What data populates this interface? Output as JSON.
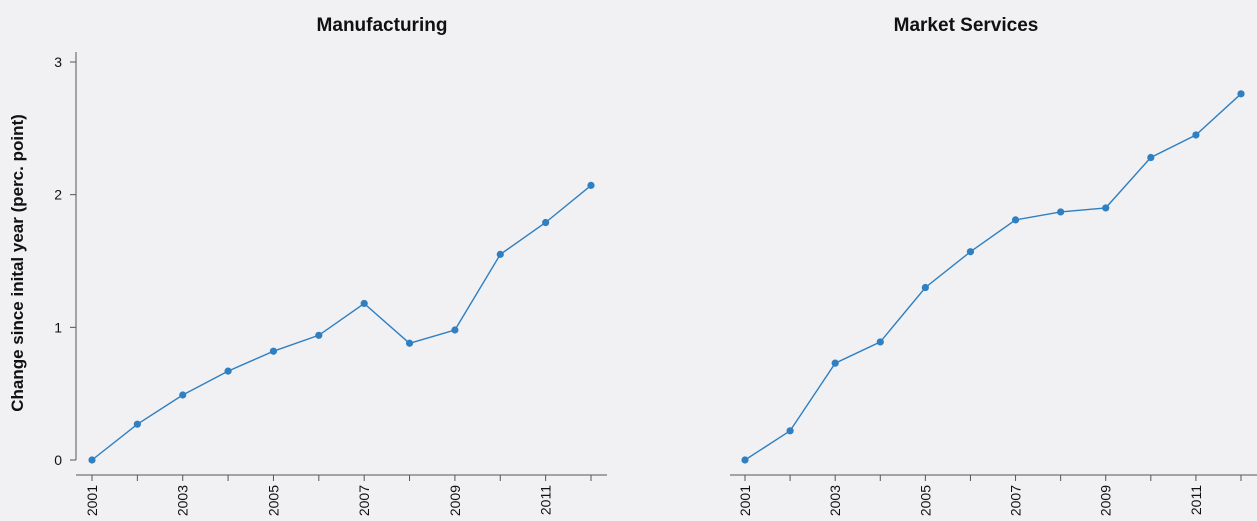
{
  "figure": {
    "ylabel": "Change since inital year (perc. point)"
  },
  "colors": {
    "background": "#f1f1f3",
    "series": "#2f7fc1",
    "axis": "#555555"
  },
  "chart_data": [
    {
      "type": "line",
      "title": "Manufacturing",
      "ylabel": "Change since inital year (perc. point)",
      "x": [
        2001,
        2002,
        2003,
        2004,
        2005,
        2006,
        2007,
        2008,
        2009,
        2010,
        2011,
        2012
      ],
      "x_tick_labels": [
        "2001",
        "2003",
        "2005",
        "2007",
        "2009",
        "2011"
      ],
      "y_tick_labels": [
        "0",
        "1",
        "2",
        "3"
      ],
      "ylim": [
        0,
        3
      ],
      "grid": false,
      "series": [
        {
          "values": [
            0.0,
            0.27,
            0.49,
            0.67,
            0.82,
            0.94,
            1.18,
            0.88,
            0.98,
            1.55,
            1.79,
            2.07
          ]
        }
      ]
    },
    {
      "type": "line",
      "title": "Market Services",
      "x": [
        2001,
        2002,
        2003,
        2004,
        2005,
        2006,
        2007,
        2008,
        2009,
        2010,
        2011,
        2012
      ],
      "x_tick_labels": [
        "2001",
        "2003",
        "2005",
        "2007",
        "2009",
        "2011"
      ],
      "ylim": [
        0,
        3
      ],
      "grid": false,
      "series": [
        {
          "values": [
            0.0,
            0.22,
            0.73,
            0.89,
            1.3,
            1.57,
            1.81,
            1.87,
            1.9,
            2.28,
            2.45,
            2.76
          ]
        }
      ]
    }
  ]
}
